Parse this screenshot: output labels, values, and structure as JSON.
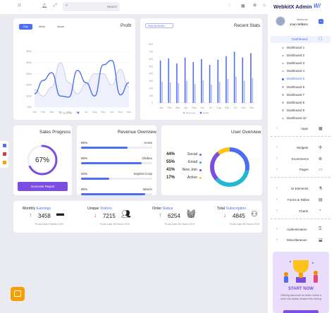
{
  "header": {
    "search_placeholder": "Search",
    "icons": [
      "shuffle-icon",
      "bell-icon",
      "expand-icon",
      "search-icon",
      "sliders-icon",
      "grid-icon",
      "globe-icon",
      "user-icon"
    ]
  },
  "sidebar": {
    "brand": "WebkitX Admin",
    "welcome": "Welcome",
    "user": "Joan Wilkins",
    "dashboard": "Dashboard",
    "dashboard_items": [
      "Dashboard 1",
      "Dashboard 2",
      "Dashboard 3",
      "Dashboard 4",
      "Dashboard 5",
      "Dashboard 6",
      "Dashboard 7",
      "Dashboard 8",
      "Dashboard 9",
      "Dashboard 10"
    ],
    "active_item": 4,
    "apps": "Apps",
    "sections": [
      "Widgets",
      "Ecommerce",
      "Pages"
    ],
    "sections2": [
      "UI Elements",
      "Forms & Tables",
      "Charts"
    ],
    "sections3": [
      "Authentication",
      "Miscellaneous"
    ],
    "promo": {
      "title": "START NOW",
      "text": "Offering discounts for better online a store can loyalty weapon into driving"
    }
  },
  "profit": {
    "title": "Profit",
    "tabs": [
      "Day",
      "Week",
      "Month"
    ],
    "active_tab": 0,
    "yticks": [
      "$50K",
      "$40K",
      "$30K",
      "$20K",
      "$10K",
      "$0K"
    ],
    "xticks": [
      "Jan",
      "Feb",
      "Mar",
      "Apr",
      "May",
      "Jun",
      "Jul",
      "Aug",
      "Sep",
      "Oct",
      "Nov",
      "Dec"
    ],
    "legend": [
      "Revenue",
      ""
    ],
    "chart_data": {
      "type": "line",
      "title": "Profit",
      "categories": [
        "Jan",
        "Feb",
        "Mar",
        "Apr",
        "May",
        "Jun",
        "Jul",
        "Aug",
        "Sep",
        "Oct",
        "Nov",
        "Dec"
      ],
      "series": [
        {
          "name": "Revenue",
          "values": [
            12,
            24,
            31,
            10,
            9,
            33,
            22,
            10,
            38,
            42,
            11,
            22
          ]
        },
        {
          "name": "",
          "values": [
            16,
            10,
            18,
            40,
            22,
            12,
            21,
            30,
            30,
            20,
            34,
            18
          ]
        }
      ],
      "ylim": [
        0,
        50
      ],
      "colors": [
        "#4c6ef5",
        "#c9cdee"
      ]
    }
  },
  "stats": {
    "title": "Recent Stats",
    "filter": "Show By Months",
    "yticks": [
      "800",
      "700",
      "600",
      "500",
      "400",
      "300",
      "200",
      "100",
      "0"
    ],
    "legend": [
      "Revenue",
      "Profit"
    ],
    "chart_data": {
      "type": "bar",
      "title": "Recent Stats",
      "categories": [
        "Jan",
        "Feb",
        "Mar",
        "Apr",
        "May",
        "Jun",
        "Jul",
        "Aug",
        "Sep",
        "Oct",
        "Nov",
        "Dec"
      ],
      "series": [
        {
          "name": "Revenue",
          "values": [
            580,
            610,
            540,
            620,
            560,
            600,
            520,
            590,
            640,
            700,
            620,
            680
          ]
        },
        {
          "name": "Profit",
          "values": [
            290,
            280,
            270,
            300,
            260,
            310,
            250,
            290,
            330,
            360,
            300,
            340
          ]
        }
      ],
      "ylim": [
        0,
        800
      ],
      "colors": [
        "#4c6ef5",
        "#aab8f9"
      ]
    }
  },
  "sales": {
    "title": "Sales Progress",
    "percent_label": "67%",
    "percent": 67,
    "button": "Generate Report"
  },
  "revenue": {
    "title": "Revenue Overview",
    "rows": [
      {
        "pct": "65%",
        "name": "Acme",
        "value": 0.65
      },
      {
        "pct": "85%",
        "name": "Globex",
        "value": 0.85
      },
      {
        "pct": "40%",
        "name": "Soylent Corp",
        "value": 0.4
      },
      {
        "pct": "90%",
        "name": "Initech",
        "value": 0.9
      }
    ]
  },
  "users": {
    "title": "User Overview",
    "rows": [
      {
        "pct": "44%",
        "label": "Social",
        "color": "#4c6ef5"
      },
      {
        "pct": "55%",
        "label": "Email",
        "color": "#22b8cf"
      },
      {
        "pct": "41%",
        "label": "New Join",
        "color": "#7b4de0"
      },
      {
        "pct": "17%",
        "label": "Active",
        "color": "#fcc419"
      }
    ],
    "donut": [
      44,
      55,
      41,
      17
    ]
  },
  "kpis": [
    {
      "label": "Monthly",
      "accent": "Earnings",
      "value": "3458",
      "dir": "up",
      "sub": "From Last 4 Week 21%",
      "icon": "cash-icon"
    },
    {
      "label": "Unique",
      "accent": "Visitors",
      "value": "7215",
      "dir": "down",
      "sub": "From Last 15 Hours 21%",
      "icon": "users-icon"
    },
    {
      "label": "Order",
      "accent": "Status",
      "value": "6254",
      "dir": "up",
      "sub": "From Last 24 Hours 21%",
      "icon": "basket-icon"
    },
    {
      "label": "Total",
      "accent": "Subscription",
      "value": "4845",
      "dir": "down",
      "sub": "From Last 26 Hours 21%",
      "icon": "user-plus-icon"
    }
  ]
}
